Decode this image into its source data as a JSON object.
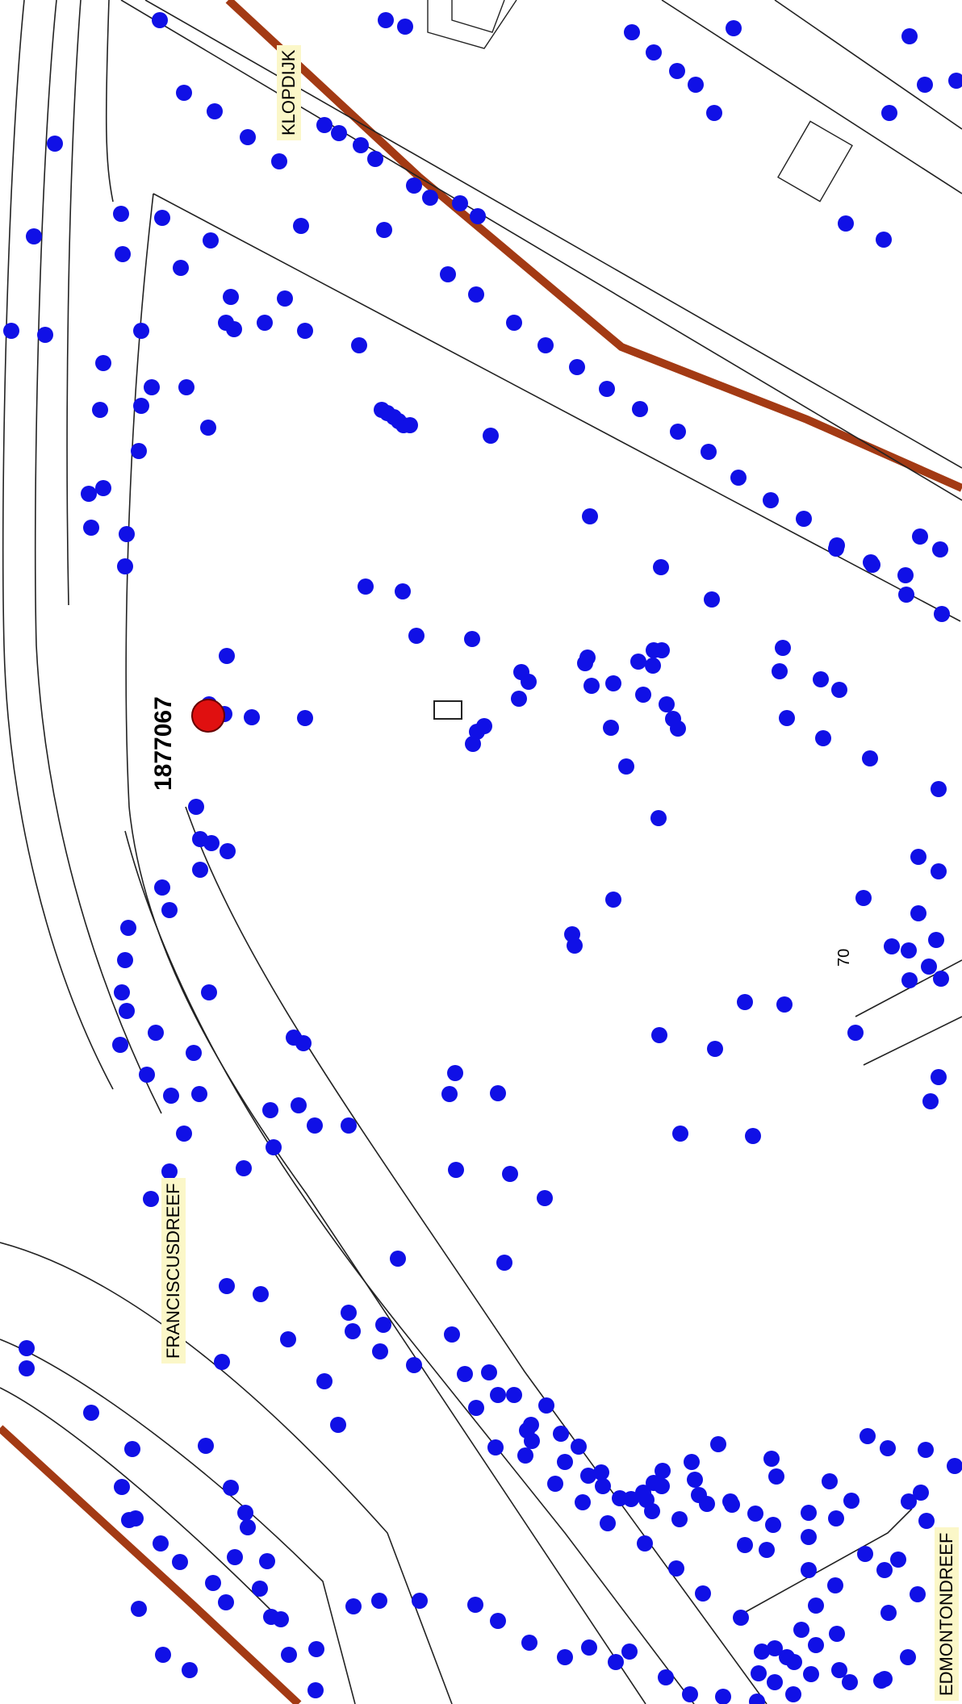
{
  "map": {
    "colors": {
      "tree_dot": "#1010e6",
      "highlight_tree": "#e01010",
      "railway": "#a33a14",
      "line": "#222222",
      "label_bg": "#fbf7c8"
    },
    "street_labels": [
      {
        "id": "klopdijk",
        "text": "KLOPDIJK"
      },
      {
        "id": "franciscusdreef",
        "text": "FRANCISCUSDREEF"
      },
      {
        "id": "edmontondreef",
        "text": "EDMONTONDREEF"
      }
    ],
    "selected_tree_id": "1877067",
    "house_number": "70"
  }
}
